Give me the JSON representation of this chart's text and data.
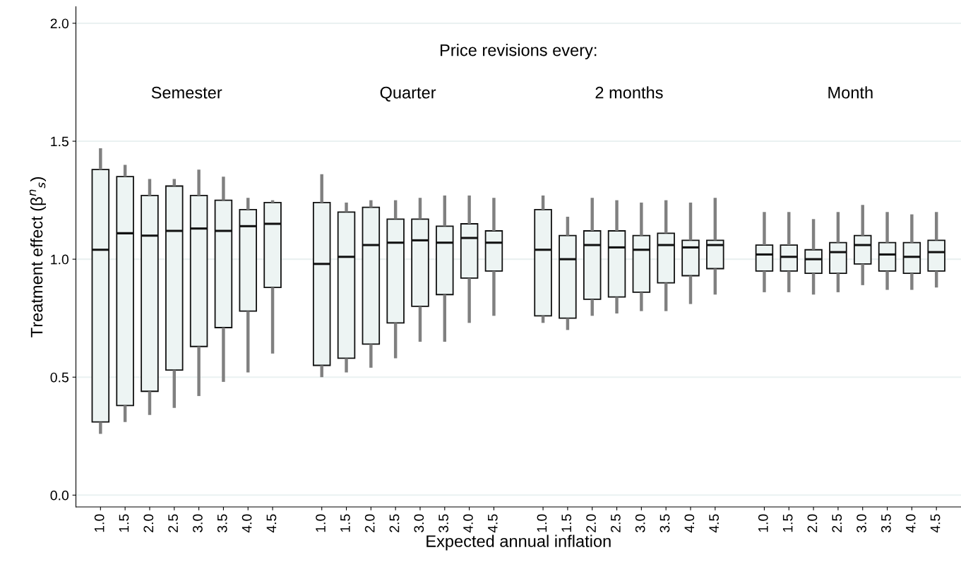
{
  "chart_data": {
    "type": "box",
    "xlabel": "Expected annual inflation",
    "ylabel": "Treatment effect (β$^{n}$$_{s}$)",
    "annotations": [
      "Price revisions every:",
      "Semester",
      "Quarter",
      "2 months",
      "Month"
    ],
    "categories": [
      "1.0",
      "1.5",
      "2.0",
      "2.5",
      "3.0",
      "3.5",
      "4.0",
      "4.5",
      null,
      "1.0",
      "1.5",
      "2.0",
      "2.5",
      "3.0",
      "3.5",
      "4.0",
      "4.5",
      null,
      "1.0",
      "1.5",
      "2.0",
      "2.5",
      "3.0",
      "3.5",
      "4.0",
      "4.5",
      null,
      "1.0",
      "1.5",
      "2.0",
      "2.5",
      "3.0",
      "3.5",
      "4.0",
      "4.5"
    ],
    "color": "#edf4f3",
    "boxes": [
      {
        "low": 0.26,
        "q1": 0.31,
        "median": 1.04,
        "q3": 1.38,
        "high": 1.47
      },
      {
        "low": 0.31,
        "q1": 0.38,
        "median": 1.11,
        "q3": 1.35,
        "high": 1.4
      },
      {
        "low": 0.34,
        "q1": 0.44,
        "median": 1.1,
        "q3": 1.27,
        "high": 1.34
      },
      {
        "low": 0.37,
        "q1": 0.53,
        "median": 1.12,
        "q3": 1.31,
        "high": 1.34
      },
      {
        "low": 0.42,
        "q1": 0.63,
        "median": 1.13,
        "q3": 1.27,
        "high": 1.38
      },
      {
        "low": 0.48,
        "q1": 0.71,
        "median": 1.12,
        "q3": 1.25,
        "high": 1.35
      },
      {
        "low": 0.52,
        "q1": 0.78,
        "median": 1.14,
        "q3": 1.21,
        "high": 1.26
      },
      {
        "low": 0.6,
        "q1": 0.88,
        "median": 1.15,
        "q3": 1.24,
        "high": 1.25
      },
      null,
      {
        "low": 0.5,
        "q1": 0.55,
        "median": 0.98,
        "q3": 1.24,
        "high": 1.36
      },
      {
        "low": 0.52,
        "q1": 0.58,
        "median": 1.01,
        "q3": 1.2,
        "high": 1.24
      },
      {
        "low": 0.54,
        "q1": 0.64,
        "median": 1.06,
        "q3": 1.22,
        "high": 1.25
      },
      {
        "low": 0.58,
        "q1": 0.73,
        "median": 1.07,
        "q3": 1.17,
        "high": 1.25
      },
      {
        "low": 0.65,
        "q1": 0.8,
        "median": 1.08,
        "q3": 1.17,
        "high": 1.26
      },
      {
        "low": 0.65,
        "q1": 0.85,
        "median": 1.07,
        "q3": 1.14,
        "high": 1.27
      },
      {
        "low": 0.73,
        "q1": 0.92,
        "median": 1.09,
        "q3": 1.15,
        "high": 1.27
      },
      {
        "low": 0.76,
        "q1": 0.95,
        "median": 1.07,
        "q3": 1.12,
        "high": 1.26
      },
      null,
      {
        "low": 0.73,
        "q1": 0.76,
        "median": 1.04,
        "q3": 1.21,
        "high": 1.27
      },
      {
        "low": 0.7,
        "q1": 0.75,
        "median": 1.0,
        "q3": 1.1,
        "high": 1.18
      },
      {
        "low": 0.76,
        "q1": 0.83,
        "median": 1.06,
        "q3": 1.12,
        "high": 1.26
      },
      {
        "low": 0.77,
        "q1": 0.84,
        "median": 1.05,
        "q3": 1.12,
        "high": 1.25
      },
      {
        "low": 0.78,
        "q1": 0.86,
        "median": 1.04,
        "q3": 1.1,
        "high": 1.24
      },
      {
        "low": 0.78,
        "q1": 0.9,
        "median": 1.06,
        "q3": 1.11,
        "high": 1.25
      },
      {
        "low": 0.81,
        "q1": 0.93,
        "median": 1.05,
        "q3": 1.08,
        "high": 1.24
      },
      {
        "low": 0.85,
        "q1": 0.96,
        "median": 1.06,
        "q3": 1.08,
        "high": 1.26
      },
      null,
      {
        "low": 0.86,
        "q1": 0.95,
        "median": 1.02,
        "q3": 1.06,
        "high": 1.2
      },
      {
        "low": 0.86,
        "q1": 0.95,
        "median": 1.01,
        "q3": 1.06,
        "high": 1.2
      },
      {
        "low": 0.85,
        "q1": 0.94,
        "median": 1.0,
        "q3": 1.04,
        "high": 1.17
      },
      {
        "low": 0.86,
        "q1": 0.94,
        "median": 1.03,
        "q3": 1.07,
        "high": 1.2
      },
      {
        "low": 0.89,
        "q1": 0.98,
        "median": 1.06,
        "q3": 1.1,
        "high": 1.23
      },
      {
        "low": 0.87,
        "q1": 0.95,
        "median": 1.02,
        "q3": 1.07,
        "high": 1.2
      },
      {
        "low": 0.87,
        "q1": 0.94,
        "median": 1.01,
        "q3": 1.07,
        "high": 1.19
      },
      {
        "low": 0.88,
        "q1": 0.95,
        "median": 1.03,
        "q3": 1.08,
        "high": 1.2
      }
    ],
    "ylim": [
      -0.05,
      2.07
    ],
    "yticks": [
      {
        "value": 0,
        "label": "0.0"
      },
      {
        "value": 0.5,
        "label": "0.5"
      },
      {
        "value": 1,
        "label": "1.0"
      },
      {
        "value": 1.5,
        "label": "1.5"
      },
      {
        "value": 2,
        "label": "2.0"
      }
    ],
    "grid": "y"
  }
}
